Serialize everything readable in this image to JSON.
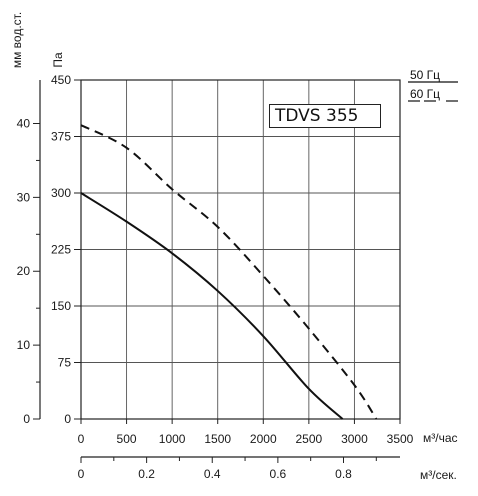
{
  "chart_data": {
    "type": "line",
    "model_label": "TDVS 355",
    "left_axis_label": "мм вод.ст.",
    "left_axis_ticks": [
      "0",
      "10",
      "20",
      "30",
      "40"
    ],
    "y_axis_label": "Па",
    "y_ticks": [
      "0",
      "75",
      "150",
      "225",
      "300",
      "375",
      "450"
    ],
    "ylim": [
      0,
      450
    ],
    "x_axis_label": "м³/час",
    "x_ticks": [
      "0",
      "500",
      "1000",
      "1500",
      "2000",
      "2500",
      "3000",
      "3500"
    ],
    "xlim": [
      0,
      3500
    ],
    "x2_axis_label": "м³/сек.",
    "x2_ticks": [
      "0",
      "0.2",
      "0.4",
      "0.6",
      "0.8"
    ],
    "grid": true,
    "legend_position": "top-right",
    "series": [
      {
        "name": "50 Гц",
        "style": "solid",
        "x": [
          0,
          500,
          1000,
          1500,
          2000,
          2500,
          2870
        ],
        "y": [
          300,
          262,
          220,
          170,
          110,
          40,
          0
        ]
      },
      {
        "name": "60 Гц",
        "style": "dashed",
        "x": [
          0,
          500,
          1000,
          1500,
          2000,
          2500,
          3000,
          3240
        ],
        "y": [
          390,
          360,
          305,
          255,
          190,
          120,
          45,
          0
        ]
      }
    ]
  },
  "colors": {
    "line": "#111111",
    "grid": "#555555",
    "background": "#ffffff"
  }
}
